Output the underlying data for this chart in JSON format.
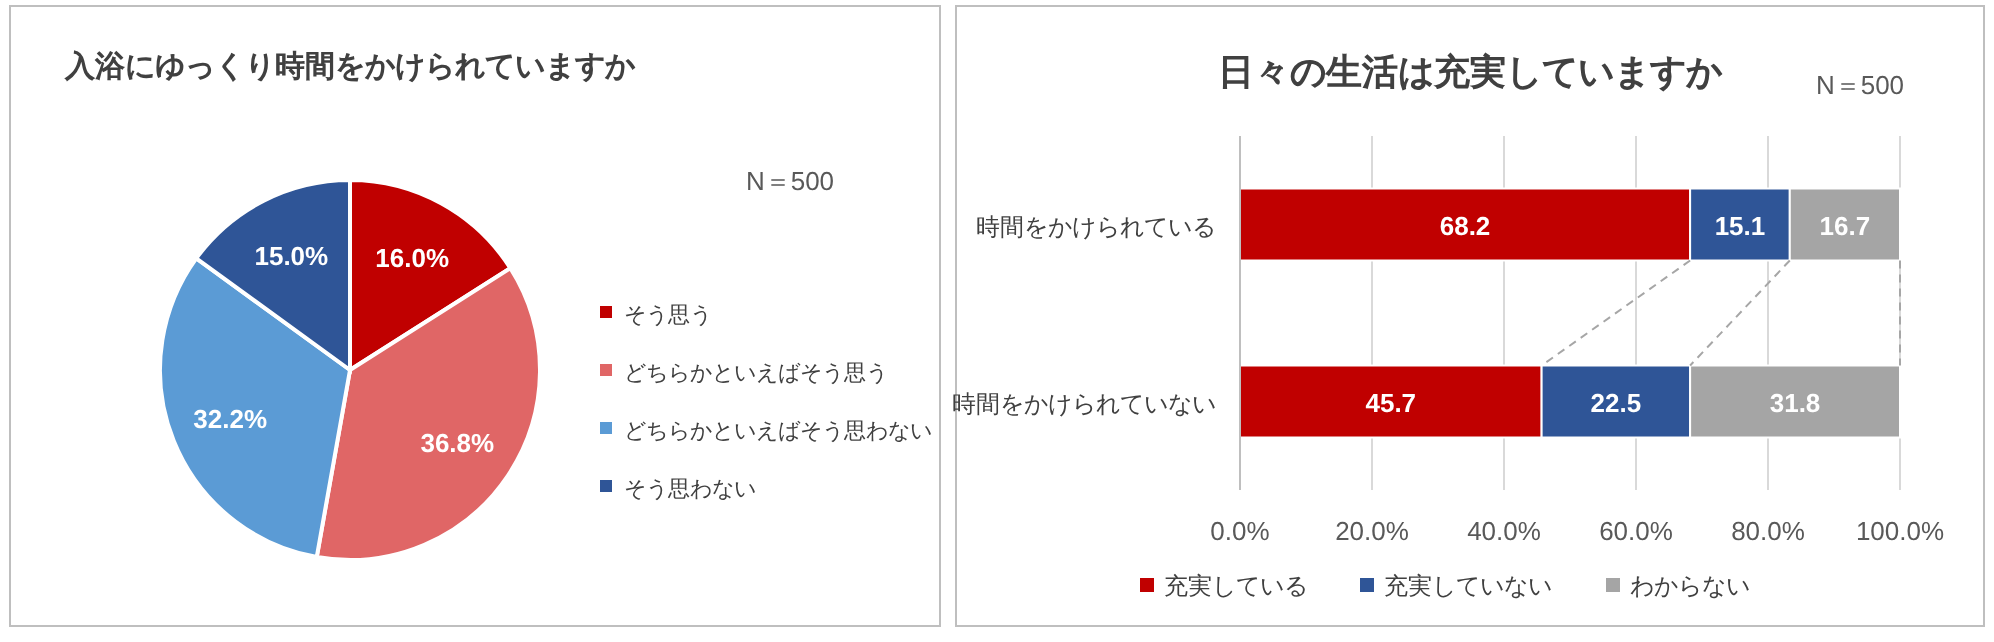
{
  "chart_data": [
    {
      "type": "pie",
      "title": "入浴にゆっくり時間をかけられていますか",
      "annotations": [
        "N＝500"
      ],
      "legend": "right",
      "categories": [
        "そう思う",
        "どちらかといえばそう思う",
        "どちらかといえばそう思わない",
        "そう思わない"
      ],
      "values": [
        16.0,
        36.8,
        32.2,
        15.0
      ],
      "colors": [
        "#c00000",
        "#e06666",
        "#5b9bd5",
        "#2f5597"
      ],
      "value_labels": [
        "16.0%",
        "36.8%",
        "32.2%",
        "15.0%"
      ]
    },
    {
      "type": "bar",
      "title": "日々の生活は充実していますか",
      "annotations": [
        "N＝500"
      ],
      "orientation": "horizontal",
      "stacked": true,
      "legend": "bottom",
      "grid": "x",
      "data_labels": true,
      "categories": [
        "時間をかけられている",
        "時間をかけられていない"
      ],
      "xlim": [
        0,
        100
      ],
      "xticks": [
        {
          "value": 0,
          "label": "0.0%"
        },
        {
          "value": 20,
          "label": "20.0%"
        },
        {
          "value": 40,
          "label": "40.0%"
        },
        {
          "value": 60,
          "label": "60.0%"
        },
        {
          "value": 80,
          "label": "80.0%"
        },
        {
          "value": 100,
          "label": "100.0%"
        }
      ],
      "series": [
        {
          "name": "充実している",
          "color": "#c00000",
          "values": [
            68.2,
            45.7
          ]
        },
        {
          "name": "充実していない",
          "color": "#2f5597",
          "values": [
            15.1,
            22.5
          ]
        },
        {
          "name": "わからない",
          "color": "#a5a5a5",
          "values": [
            16.7,
            31.8
          ]
        }
      ]
    }
  ]
}
